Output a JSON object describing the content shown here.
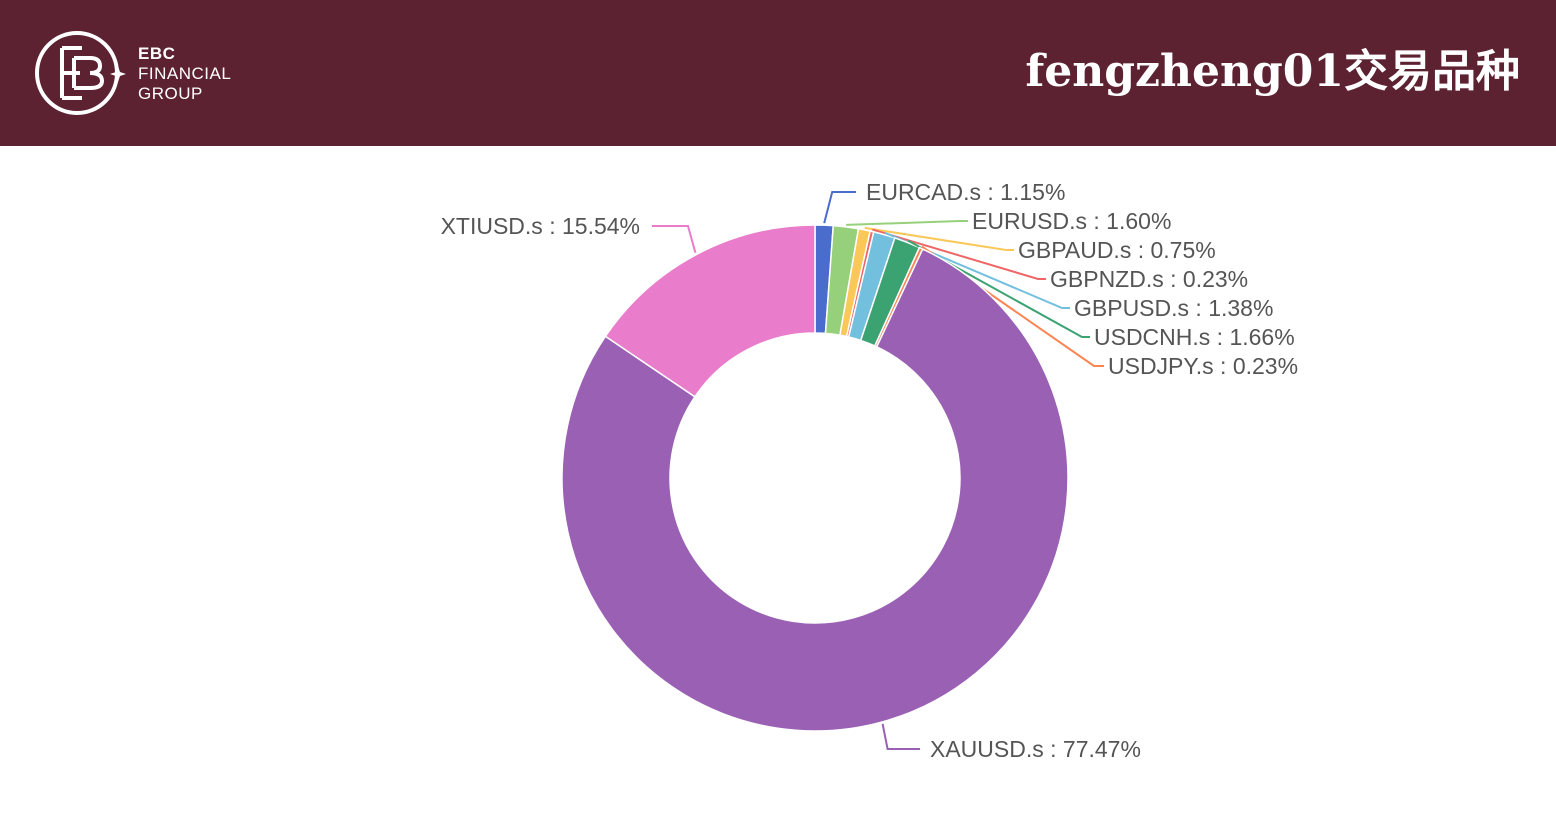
{
  "header": {
    "logo": {
      "line1": "EBC",
      "line2": "FINANCIAL",
      "line3": "GROUP"
    },
    "title": "fengzheng01交易品种"
  },
  "chart_data": {
    "type": "pie",
    "style": "donut",
    "title": "",
    "slices": [
      {
        "label": "EURCAD.s",
        "value": 1.15,
        "display": "EURCAD.s : 1.15%",
        "color": "#4a6ccc"
      },
      {
        "label": "EURUSD.s",
        "value": 1.6,
        "display": "EURUSD.s : 1.60%",
        "color": "#97d07a"
      },
      {
        "label": "GBPAUD.s",
        "value": 0.75,
        "display": "GBPAUD.s : 0.75%",
        "color": "#fac858"
      },
      {
        "label": "GBPNZD.s",
        "value": 0.23,
        "display": "GBPNZD.s : 0.23%",
        "color": "#ee6666"
      },
      {
        "label": "GBPUSD.s",
        "value": 1.38,
        "display": "GBPUSD.s : 1.38%",
        "color": "#73c0de"
      },
      {
        "label": "USDCNH.s",
        "value": 1.66,
        "display": "USDCNH.s : 1.66%",
        "color": "#3ba272"
      },
      {
        "label": "USDJPY.s",
        "value": 0.23,
        "display": "USDJPY.s : 0.23%",
        "color": "#fc8452"
      },
      {
        "label": "XAUUSD.s",
        "value": 77.47,
        "display": "XAUUSD.s : 77.47%",
        "color": "#9a60b4"
      },
      {
        "label": "XTIUSD.s",
        "value": 15.54,
        "display": "XTIUSD.s : 15.54%",
        "color": "#ea7ccc"
      }
    ]
  }
}
